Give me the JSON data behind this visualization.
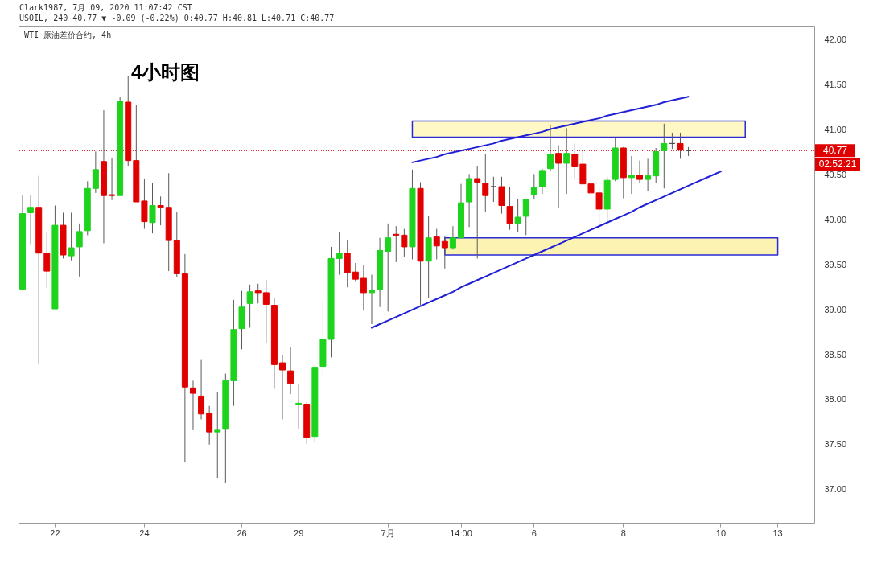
{
  "chart_data": {
    "type": "candlestick",
    "title": "WTI 原油差价合约, 4h",
    "annotations": [
      "Clark1987, 7月 09, 2020 11:07:42 CST",
      "USOIL, 240 40.77 ▼ -0.09 (-0.22%) O:40.77 H:40.81 L:40.71 C:40.77",
      "4小时图",
      "02:52:21"
    ],
    "categories": [
      null,
      null,
      null,
      null,
      "22",
      null,
      null,
      null,
      null,
      null,
      null,
      null,
      null,
      null,
      null,
      "24",
      null,
      null,
      null,
      null,
      null,
      null,
      null,
      null,
      null,
      null,
      null,
      "26",
      null,
      null,
      null,
      null,
      null,
      null,
      "29",
      null,
      null,
      null,
      null,
      null,
      null,
      null,
      null,
      null,
      null,
      "7月",
      null,
      null,
      null,
      null,
      null,
      null,
      null,
      null,
      "14:00",
      null,
      null,
      null,
      null,
      null,
      null,
      null,
      null,
      "6",
      null,
      null,
      null,
      null,
      null,
      null,
      null,
      null,
      null,
      null,
      "8",
      null,
      null,
      null,
      null,
      null,
      null,
      null,
      null,
      null,
      null,
      null,
      "10",
      null,
      null,
      null,
      null,
      null,
      null,
      "13",
      null,
      null,
      null,
      null
    ],
    "ohlc": [
      [
        39.23,
        40.27,
        39.23,
        40.07
      ],
      [
        40.08,
        40.27,
        39.73,
        40.14
      ],
      [
        40.14,
        40.49,
        38.39,
        39.63
      ],
      [
        39.63,
        39.86,
        39.24,
        39.43
      ],
      [
        39.01,
        40.16,
        39.01,
        39.94
      ],
      [
        39.94,
        40.08,
        39.57,
        39.61
      ],
      [
        39.6,
        40.08,
        39.55,
        39.69
      ],
      [
        39.7,
        39.96,
        39.37,
        39.87
      ],
      [
        39.88,
        40.43,
        39.83,
        40.35
      ],
      [
        40.35,
        40.76,
        40.3,
        40.56
      ],
      [
        40.65,
        41.22,
        39.74,
        40.27
      ],
      [
        40.28,
        40.69,
        40.22,
        40.27
      ],
      [
        40.27,
        41.37,
        40.27,
        41.32
      ],
      [
        41.31,
        41.6,
        40.6,
        40.66
      ],
      [
        40.66,
        41.28,
        40.2,
        40.2
      ],
      [
        40.21,
        40.46,
        39.9,
        39.98
      ],
      [
        39.97,
        40.41,
        39.85,
        40.16
      ],
      [
        40.16,
        40.26,
        39.94,
        40.14
      ],
      [
        40.14,
        40.52,
        39.43,
        39.77
      ],
      [
        39.77,
        40.09,
        39.36,
        39.4
      ],
      [
        39.4,
        39.62,
        37.3,
        38.14
      ],
      [
        38.13,
        38.21,
        37.66,
        38.07
      ],
      [
        38.04,
        38.45,
        37.78,
        37.84
      ],
      [
        37.85,
        37.93,
        37.5,
        37.64
      ],
      [
        37.64,
        38.08,
        37.13,
        37.66
      ],
      [
        37.67,
        38.29,
        37.07,
        38.21
      ],
      [
        38.21,
        39.11,
        37.93,
        38.78
      ],
      [
        38.79,
        39.21,
        38.56,
        39.03
      ],
      [
        39.07,
        39.28,
        38.8,
        39.2
      ],
      [
        39.21,
        39.29,
        39.07,
        39.19
      ],
      [
        39.19,
        39.33,
        38.63,
        39.06
      ],
      [
        39.05,
        39.13,
        38.12,
        38.39
      ],
      [
        38.41,
        38.5,
        37.78,
        38.33
      ],
      [
        38.32,
        38.58,
        38.06,
        38.18
      ],
      [
        37.95,
        38.18,
        37.67,
        37.96
      ],
      [
        37.95,
        37.97,
        37.51,
        37.58
      ],
      [
        37.59,
        38.37,
        37.52,
        38.36
      ],
      [
        38.37,
        39.1,
        38.28,
        38.67
      ],
      [
        38.67,
        39.7,
        38.47,
        39.57
      ],
      [
        39.57,
        39.87,
        39.39,
        39.63
      ],
      [
        39.63,
        39.78,
        39.25,
        39.41
      ],
      [
        39.42,
        39.52,
        39.31,
        39.34
      ],
      [
        39.35,
        39.5,
        38.99,
        39.19
      ],
      [
        39.19,
        39.39,
        38.84,
        39.22
      ],
      [
        39.22,
        39.8,
        39.03,
        39.66
      ],
      [
        39.65,
        39.96,
        38.98,
        39.8
      ],
      [
        39.84,
        39.93,
        39.53,
        39.83
      ],
      [
        39.83,
        39.9,
        39.59,
        39.7
      ],
      [
        39.7,
        40.56,
        39.56,
        40.35
      ],
      [
        40.35,
        40.42,
        39.05,
        39.54
      ],
      [
        39.54,
        40.04,
        39.13,
        39.8
      ],
      [
        39.81,
        39.9,
        39.56,
        39.71
      ],
      [
        39.76,
        39.82,
        39.46,
        39.69
      ],
      [
        39.69,
        39.93,
        39.67,
        39.8
      ],
      [
        39.8,
        40.4,
        39.8,
        40.19
      ],
      [
        40.2,
        40.51,
        39.92,
        40.46
      ],
      [
        40.46,
        40.6,
        39.57,
        40.42
      ],
      [
        40.41,
        40.73,
        40.09,
        40.27
      ],
      [
        40.37,
        40.48,
        40.2,
        40.37
      ],
      [
        40.37,
        40.48,
        40.07,
        40.16
      ],
      [
        40.15,
        40.37,
        39.89,
        39.96
      ],
      [
        39.96,
        40.23,
        39.86,
        40.03
      ],
      [
        40.04,
        40.23,
        39.83,
        40.23
      ],
      [
        40.28,
        40.51,
        40.23,
        40.36
      ],
      [
        40.37,
        40.57,
        40.29,
        40.55
      ],
      [
        40.57,
        41.06,
        40.54,
        40.73
      ],
      [
        40.74,
        40.83,
        40.13,
        40.63
      ],
      [
        40.63,
        41.02,
        40.29,
        40.74
      ],
      [
        40.73,
        40.85,
        40.46,
        40.59
      ],
      [
        40.62,
        40.77,
        40.4,
        40.4
      ],
      [
        40.4,
        40.5,
        40.26,
        40.3
      ],
      [
        40.3,
        40.36,
        39.89,
        40.12
      ],
      [
        40.12,
        40.48,
        39.97,
        40.44
      ],
      [
        40.45,
        40.92,
        40.43,
        40.8
      ],
      [
        40.8,
        40.81,
        40.24,
        40.47
      ],
      [
        40.47,
        40.71,
        40.29,
        40.5
      ],
      [
        40.5,
        40.66,
        40.41,
        40.45
      ],
      [
        40.45,
        40.68,
        40.32,
        40.49
      ],
      [
        40.49,
        40.8,
        40.41,
        40.76
      ],
      [
        40.77,
        41.07,
        40.35,
        40.85
      ],
      [
        40.85,
        40.97,
        40.79,
        40.85
      ],
      [
        40.85,
        40.97,
        40.68,
        40.78
      ],
      [
        40.77,
        40.81,
        40.71,
        40.77
      ],
      null,
      null,
      null,
      null,
      null,
      null,
      null,
      null,
      null,
      null,
      null,
      null,
      null,
      null,
      null
    ],
    "colors": [
      "#1ed31e",
      "#1ed31e",
      "#e00000",
      "#e00000",
      "#1ed31e",
      "#e00000",
      "#1ed31e",
      "#1ed31e",
      "#1ed31e",
      "#1ed31e",
      "#e00000",
      "#e00000",
      "#1ed31e",
      "#e00000",
      "#e00000",
      "#e00000",
      "#1ed31e",
      "#e00000",
      "#e00000",
      "#e00000",
      "#e00000",
      "#e00000",
      "#e00000",
      "#e00000",
      "#1ed31e",
      "#1ed31e",
      "#1ed31e",
      "#1ed31e",
      "#1ed31e",
      "#e00000",
      "#e00000",
      "#e00000",
      "#e00000",
      "#e00000",
      "#1ed31e",
      "#e00000",
      "#1ed31e",
      "#1ed31e",
      "#1ed31e",
      "#1ed31e",
      "#e00000",
      "#e00000",
      "#e00000",
      "#1ed31e",
      "#1ed31e",
      "#1ed31e",
      "#e00000",
      "#e00000",
      "#1ed31e",
      "#e00000",
      "#1ed31e",
      "#e00000",
      "#e00000",
      "#1ed31e",
      "#1ed31e",
      "#1ed31e",
      "#e00000",
      "#e00000",
      "#4d4d4d",
      "#e00000",
      "#e00000",
      "#1ed31e",
      "#1ed31e",
      "#1ed31e",
      "#1ed31e",
      "#1ed31e",
      "#e00000",
      "#1ed31e",
      "#e00000",
      "#e00000",
      "#e00000",
      "#e00000",
      "#1ed31e",
      "#1ed31e",
      "#e00000",
      "#1ed31e",
      "#e00000",
      "#1ed31e",
      "#1ed31e",
      "#1ed31e",
      "#4d4d4d",
      "#e00000",
      "#4d4d4d",
      null,
      null,
      null,
      null,
      null,
      null,
      null,
      null,
      null,
      null,
      null,
      null,
      null,
      null,
      null
    ],
    "series": [
      {
        "type": "line",
        "color": "#fff8c4",
        "values": [
          null,
          null,
          null,
          null,
          null,
          null,
          null,
          null,
          null,
          null,
          null,
          null,
          null,
          null,
          null,
          null,
          null,
          null,
          null,
          null,
          null,
          null,
          null,
          null,
          null,
          null,
          null,
          null,
          null,
          null,
          null,
          null,
          null,
          null,
          null,
          null,
          null,
          null,
          null,
          null,
          null,
          null,
          null,
          null,
          null,
          null,
          null,
          null,
          null,
          null,
          null,
          null,
          null,
          null,
          null,
          null,
          null,
          null,
          null,
          null,
          null,
          null,
          null,
          null,
          null,
          null,
          null,
          null,
          null,
          null,
          null,
          null,
          null,
          null,
          null,
          null,
          null,
          null,
          null,
          null,
          null,
          null,
          null,
          null,
          null,
          null,
          null,
          null,
          null,
          null,
          null,
          null,
          null,
          null,
          null,
          null,
          null,
          null
        ],
        "upper": [
          null,
          null,
          null,
          null,
          null,
          null,
          null,
          null,
          null,
          null,
          null,
          null,
          null,
          null,
          null,
          null,
          null,
          null,
          null,
          null,
          null,
          null,
          null,
          null,
          null,
          null,
          null,
          null,
          null,
          null,
          null,
          null,
          null,
          null,
          null,
          null,
          null,
          null,
          null,
          null,
          null,
          null,
          null,
          null,
          null,
          null,
          null,
          null,
          41.1,
          41.1,
          41.1,
          41.1,
          41.1,
          41.1,
          41.1,
          41.1,
          41.1,
          41.1,
          41.1,
          41.1,
          41.1,
          41.1,
          41.1,
          41.1,
          41.1,
          41.1,
          41.1,
          41.1,
          41.1,
          41.1,
          41.1,
          41.1,
          41.1,
          41.1,
          41.1,
          41.1,
          41.1,
          41.1,
          41.1,
          41.1,
          41.1,
          41.1,
          41.1,
          41.1,
          41.1,
          41.1,
          41.1,
          41.1,
          41.1,
          41.1,
          null,
          null,
          null,
          null,
          null,
          null,
          null,
          null
        ],
        "lower": [
          null,
          null,
          null,
          null,
          null,
          null,
          null,
          null,
          null,
          null,
          null,
          null,
          null,
          null,
          null,
          null,
          null,
          null,
          null,
          null,
          null,
          null,
          null,
          null,
          null,
          null,
          null,
          null,
          null,
          null,
          null,
          null,
          null,
          null,
          null,
          null,
          null,
          null,
          null,
          null,
          null,
          null,
          null,
          null,
          null,
          null,
          null,
          null,
          40.92,
          40.92,
          40.92,
          40.92,
          40.92,
          40.92,
          40.92,
          40.92,
          40.92,
          40.92,
          40.92,
          40.92,
          40.92,
          40.92,
          40.92,
          40.92,
          40.92,
          40.92,
          40.92,
          40.92,
          40.92,
          40.92,
          40.92,
          40.92,
          40.92,
          40.92,
          40.92,
          40.92,
          40.92,
          40.92,
          40.92,
          40.92,
          40.92,
          40.92,
          40.92,
          40.92,
          40.92,
          40.92,
          40.92,
          40.92,
          40.92,
          40.92,
          null,
          null,
          null,
          null,
          null,
          null,
          null,
          null
        ]
      },
      {
        "type": "line",
        "color": "#fcf2b2",
        "values": [
          null,
          null,
          null,
          null,
          null,
          null,
          null,
          null,
          null,
          null,
          null,
          null,
          null,
          null,
          null,
          null,
          null,
          null,
          null,
          null,
          null,
          null,
          null,
          null,
          null,
          null,
          null,
          null,
          null,
          null,
          null,
          null,
          null,
          null,
          null,
          null,
          null,
          null,
          null,
          null,
          null,
          null,
          null,
          null,
          null,
          null,
          null,
          null,
          null,
          null,
          null,
          null,
          null,
          null,
          null,
          null,
          null,
          null,
          null,
          null,
          null,
          null,
          null,
          null,
          null,
          null,
          null,
          null,
          null,
          null,
          null,
          null,
          null,
          null,
          null,
          null,
          null,
          null,
          null,
          null,
          null,
          null,
          null,
          null,
          null,
          null,
          null,
          null,
          null,
          null,
          null,
          null,
          null,
          null,
          null,
          null,
          null,
          null
        ],
        "upper": [
          null,
          null,
          null,
          null,
          null,
          null,
          null,
          null,
          null,
          null,
          null,
          null,
          null,
          null,
          null,
          null,
          null,
          null,
          null,
          null,
          null,
          null,
          null,
          null,
          null,
          null,
          null,
          null,
          null,
          null,
          null,
          null,
          null,
          null,
          null,
          null,
          null,
          null,
          null,
          null,
          null,
          null,
          null,
          null,
          null,
          null,
          null,
          null,
          null,
          null,
          null,
          null,
          39.8,
          39.8,
          39.8,
          39.8,
          39.8,
          39.8,
          39.8,
          39.8,
          39.8,
          39.8,
          39.8,
          39.8,
          39.8,
          39.8,
          39.8,
          39.8,
          39.8,
          39.8,
          39.8,
          39.8,
          39.8,
          39.8,
          39.8,
          39.8,
          39.8,
          39.8,
          39.8,
          39.8,
          39.8,
          39.8,
          39.8,
          39.8,
          39.8,
          39.8,
          39.8,
          39.8,
          39.8,
          39.8,
          39.8,
          39.8,
          39.8,
          39.8,
          null,
          null,
          null,
          null
        ],
        "lower": [
          null,
          null,
          null,
          null,
          null,
          null,
          null,
          null,
          null,
          null,
          null,
          null,
          null,
          null,
          null,
          null,
          null,
          null,
          null,
          null,
          null,
          null,
          null,
          null,
          null,
          null,
          null,
          null,
          null,
          null,
          null,
          null,
          null,
          null,
          null,
          null,
          null,
          null,
          null,
          null,
          null,
          null,
          null,
          null,
          null,
          null,
          null,
          null,
          null,
          null,
          null,
          null,
          39.61,
          39.61,
          39.61,
          39.61,
          39.61,
          39.61,
          39.61,
          39.61,
          39.61,
          39.61,
          39.61,
          39.61,
          39.61,
          39.61,
          39.61,
          39.61,
          39.61,
          39.61,
          39.61,
          39.61,
          39.61,
          39.61,
          39.61,
          39.61,
          39.61,
          39.61,
          39.61,
          39.61,
          39.61,
          39.61,
          39.61,
          39.61,
          39.61,
          39.61,
          39.61,
          39.61,
          39.61,
          39.61,
          39.61,
          39.61,
          39.61,
          39.61,
          null,
          null,
          null,
          null
        ]
      },
      {
        "type": "line",
        "color": "#1f1fd6",
        "values": [
          null,
          null,
          null,
          null,
          null,
          null,
          null,
          null,
          null,
          null,
          null,
          null,
          null,
          null,
          null,
          null,
          null,
          null,
          null,
          null,
          null,
          null,
          null,
          null,
          null,
          null,
          null,
          null,
          null,
          null,
          null,
          null,
          null,
          null,
          null,
          null,
          null,
          null,
          null,
          null,
          null,
          null,
          null,
          null,
          null,
          null,
          null,
          null,
          40.64,
          40.66,
          40.68,
          40.7,
          40.73,
          40.75,
          40.77,
          40.79,
          40.81,
          40.83,
          40.85,
          40.88,
          40.9,
          40.92,
          40.94,
          40.96,
          40.98,
          41.01,
          41.03,
          41.05,
          41.07,
          41.09,
          41.11,
          41.13,
          41.16,
          41.18,
          41.2,
          41.22,
          41.24,
          41.26,
          41.28,
          41.31,
          41.33,
          41.35,
          41.37,
          null,
          null,
          null,
          null,
          null,
          null,
          null,
          null,
          null,
          null,
          null,
          null,
          null,
          null,
          null
        ]
      },
      {
        "type": "line",
        "color": "#1f1fd6",
        "values": [
          null,
          null,
          null,
          null,
          null,
          null,
          null,
          null,
          null,
          null,
          null,
          null,
          null,
          null,
          null,
          null,
          null,
          null,
          null,
          null,
          null,
          null,
          null,
          null,
          null,
          null,
          null,
          null,
          null,
          null,
          null,
          null,
          null,
          null,
          null,
          null,
          null,
          null,
          null,
          null,
          null,
          null,
          null,
          38.8,
          38.84,
          38.88,
          38.92,
          38.96,
          39.0,
          39.04,
          39.08,
          39.12,
          39.16,
          39.2,
          39.25,
          39.29,
          39.33,
          39.37,
          39.41,
          39.45,
          39.49,
          39.53,
          39.57,
          39.61,
          39.65,
          39.69,
          39.73,
          39.77,
          39.81,
          39.85,
          39.89,
          39.93,
          39.97,
          40.01,
          40.05,
          40.09,
          40.14,
          40.18,
          40.22,
          40.26,
          40.3,
          40.34,
          40.38,
          40.42,
          40.46,
          40.5,
          40.54,
          null,
          null,
          null,
          null,
          null,
          null,
          null,
          null,
          null,
          null,
          null
        ]
      }
    ],
    "ylim": [
      36.63,
      42.16
    ],
    "yticks": [
      {
        "value": 37,
        "label": "37.00"
      },
      {
        "value": 37.5,
        "label": "37.50"
      },
      {
        "value": 38,
        "label": "38.00"
      },
      {
        "value": 38.5,
        "label": "38.50"
      },
      {
        "value": 39,
        "label": "39.00"
      },
      {
        "value": 39.5,
        "label": "39.50"
      },
      {
        "value": 40,
        "label": "40.00"
      },
      {
        "value": 40.5,
        "label": "40.50"
      },
      {
        "value": 41,
        "label": "41.00"
      },
      {
        "value": 41.5,
        "label": "41.50"
      },
      {
        "value": 42,
        "label": "42.00"
      }
    ],
    "ref_lines": [
      {
        "axis": "y",
        "value": 40.77,
        "label": "40.77",
        "color": "#e00000",
        "line_style": "dotted"
      }
    ]
  }
}
